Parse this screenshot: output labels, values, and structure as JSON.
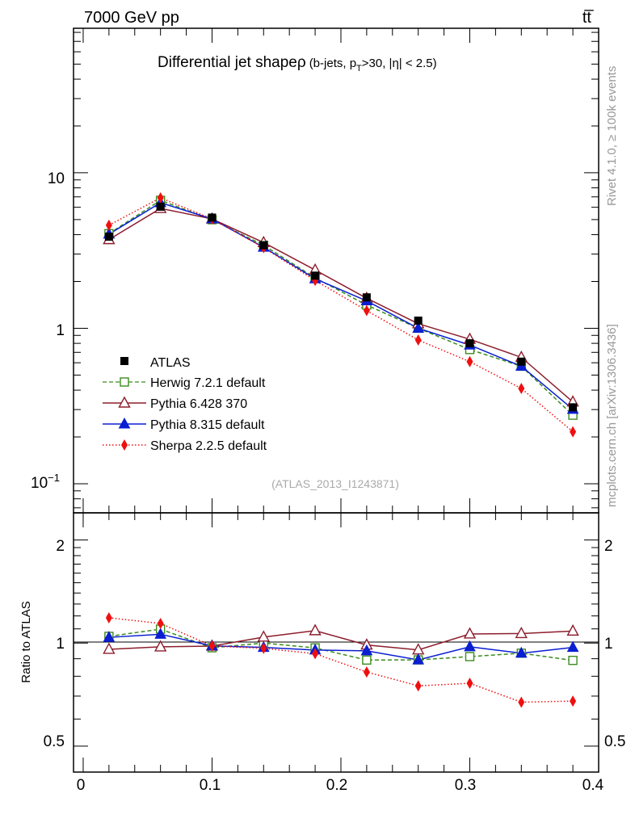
{
  "header": {
    "energy_label": "7000 GeV pp",
    "process_label": "tt̅"
  },
  "side_labels": {
    "rivet": "Rivet 4.1.0, ≥ 100k events",
    "mcplots": "mcplots.cern.ch [arXiv:1306.3436]"
  },
  "chart_data": [
    {
      "type": "line",
      "yscale": "log",
      "title_main": "Differential jet shapeρ",
      "title_sub": "(b-jets, p",
      "title_sub_sub": "T",
      "title_sub_rest": ">30, |η| < 2.5)",
      "watermark": "(ATLAS_2013_I1243871)",
      "xlim": [
        -0.0075,
        0.4
      ],
      "ylim": [
        0.065,
        85
      ],
      "y_tick_labels": [
        "10",
        "1",
        "10"
      ],
      "y_tick_exp": "−1",
      "x": [
        0.02,
        0.06,
        0.1,
        0.14,
        0.18,
        0.22,
        0.26,
        0.3,
        0.34,
        0.38
      ],
      "series": [
        {
          "name": "ATLAS",
          "color": "#000000",
          "marker": "square-filled",
          "line": "none",
          "values": [
            3.88,
            6.05,
            5.15,
            3.42,
            2.18,
            1.58,
            1.12,
            0.8,
            0.61,
            0.31
          ]
        },
        {
          "name": "Herwig 7.2.1 default",
          "color": "#3c8c1e",
          "marker": "square-open",
          "line": "dashed",
          "values": [
            4.06,
            6.65,
            4.99,
            3.42,
            2.11,
            1.41,
            1.0,
            0.73,
            0.57,
            0.276
          ]
        },
        {
          "name": "Pythia 6.428 370",
          "color": "#8c1e2d",
          "marker": "triangle-open",
          "line": "solid",
          "values": [
            3.72,
            5.9,
            5.05,
            3.56,
            2.37,
            1.56,
            1.07,
            0.85,
            0.65,
            0.336
          ]
        },
        {
          "name": "Pythia 8.315 default",
          "color": "#0a1ed2",
          "marker": "triangle-filled",
          "line": "solid",
          "values": [
            4.03,
            6.42,
            5.05,
            3.32,
            2.08,
            1.5,
            1.0,
            0.78,
            0.57,
            0.301
          ]
        },
        {
          "name": "Sherpa 2.2.5 default",
          "color": "#f00f0f",
          "marker": "diamond-filled",
          "line": "dotted",
          "values": [
            4.6,
            6.9,
            5.05,
            3.3,
            2.03,
            1.3,
            0.84,
            0.61,
            0.41,
            0.216
          ]
        }
      ]
    },
    {
      "type": "line",
      "yscale": "log",
      "ylabel": "Ratio to ATLAS",
      "xlim": [
        -0.0075,
        0.4
      ],
      "ylim": [
        0.42,
        2.4
      ],
      "x_tick_labels": [
        "0",
        "0.1",
        "0.2",
        "0.3",
        "0.4"
      ],
      "y_tick_labels": [
        "2",
        "1",
        "0.5"
      ],
      "reference_line": 1,
      "x": [
        0.02,
        0.06,
        0.1,
        0.14,
        0.18,
        0.22,
        0.26,
        0.3,
        0.34,
        0.38
      ],
      "series": [
        {
          "name": "Herwig 7.2.1 default",
          "color": "#3c8c1e",
          "marker": "square-open",
          "line": "dashed",
          "values": [
            1.046,
            1.098,
            0.969,
            1.0,
            0.968,
            0.892,
            0.893,
            0.913,
            0.934,
            0.89
          ]
        },
        {
          "name": "Pythia 6.428 370",
          "color": "#8c1e2d",
          "marker": "triangle-open",
          "line": "solid",
          "values": [
            0.959,
            0.975,
            0.98,
            1.041,
            1.087,
            0.987,
            0.955,
            1.063,
            1.066,
            1.084
          ]
        },
        {
          "name": "Pythia 8.315 default",
          "color": "#0a1ed2",
          "marker": "triangle-filled",
          "line": "solid",
          "values": [
            1.039,
            1.061,
            0.981,
            0.971,
            0.954,
            0.949,
            0.893,
            0.975,
            0.934,
            0.971
          ]
        },
        {
          "name": "Sherpa 2.2.5 default",
          "color": "#f00f0f",
          "marker": "diamond-filled",
          "line": "dotted",
          "values": [
            1.185,
            1.141,
            0.981,
            0.965,
            0.931,
            0.823,
            0.75,
            0.763,
            0.672,
            0.677
          ]
        }
      ]
    }
  ]
}
